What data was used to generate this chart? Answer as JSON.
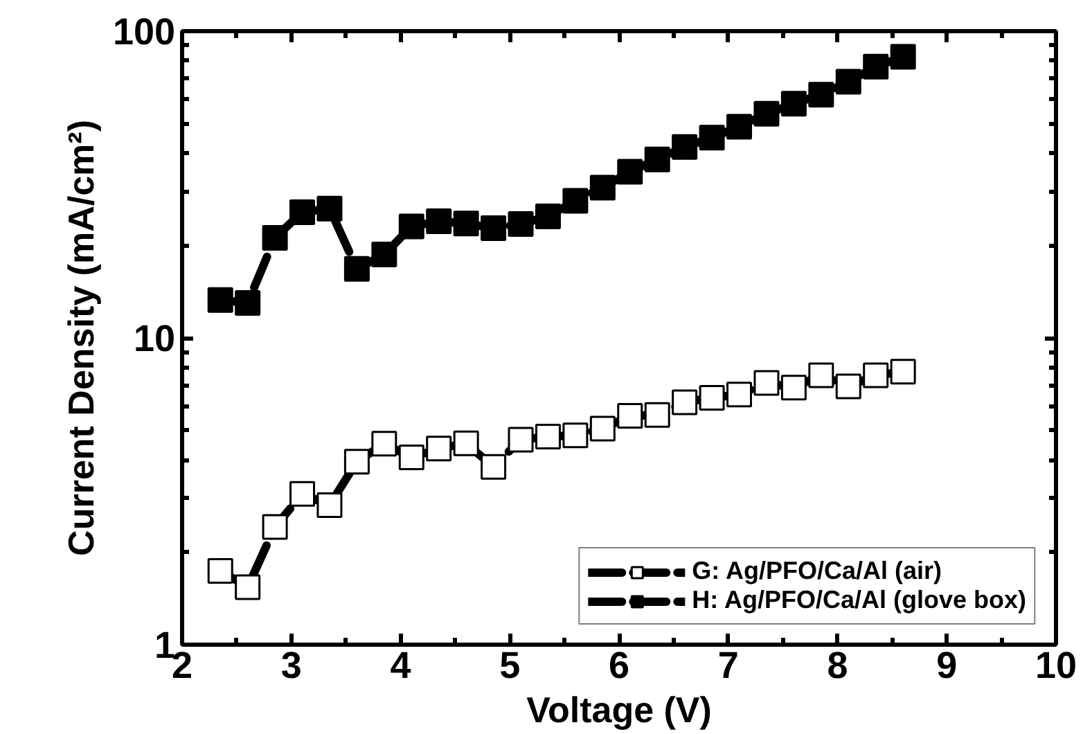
{
  "chart_data": {
    "type": "line",
    "xlabel": "Voltage (V)",
    "ylabel": "Current Density (mA/cm²)",
    "x": [
      2.35,
      2.6,
      2.85,
      3.1,
      3.35,
      3.6,
      3.85,
      4.1,
      4.35,
      4.6,
      4.85,
      5.1,
      5.35,
      5.6,
      5.85,
      6.1,
      6.35,
      6.6,
      6.85,
      7.1,
      7.35,
      7.6,
      7.85,
      8.1,
      8.35,
      8.6
    ],
    "series": [
      {
        "name": "G: Ag/PFO/Ca/Al (air)",
        "color": "#000000",
        "values": [
          1.74,
          1.54,
          2.42,
          3.1,
          2.85,
          3.95,
          4.52,
          4.08,
          4.36,
          4.53,
          3.8,
          4.66,
          4.77,
          4.81,
          5.06,
          5.57,
          5.61,
          6.17,
          6.38,
          6.54,
          7.13,
          6.89,
          7.55,
          6.95,
          7.55,
          7.76
        ]
      },
      {
        "name": "H: Ag/PFO/Ca/Al (glove box)",
        "color": "#000000",
        "values": [
          13.3,
          13.0,
          21.2,
          25.7,
          26.4,
          16.8,
          18.7,
          23.1,
          24.0,
          23.6,
          22.8,
          23.5,
          24.9,
          28.0,
          30.9,
          34.8,
          38.2,
          41.9,
          45.0,
          48.8,
          53.8,
          58.0,
          62.1,
          68.4,
          76.6,
          82.5
        ]
      }
    ],
    "xlim": [
      2,
      10
    ],
    "xticks": [
      2,
      3,
      4,
      5,
      6,
      7,
      8,
      9,
      10
    ],
    "ylim": [
      1,
      100
    ],
    "yticks": [
      1,
      10,
      100
    ],
    "log": "y",
    "grid": false,
    "legend": "bottom right",
    "marker": "square",
    "line_style": "dashed"
  }
}
